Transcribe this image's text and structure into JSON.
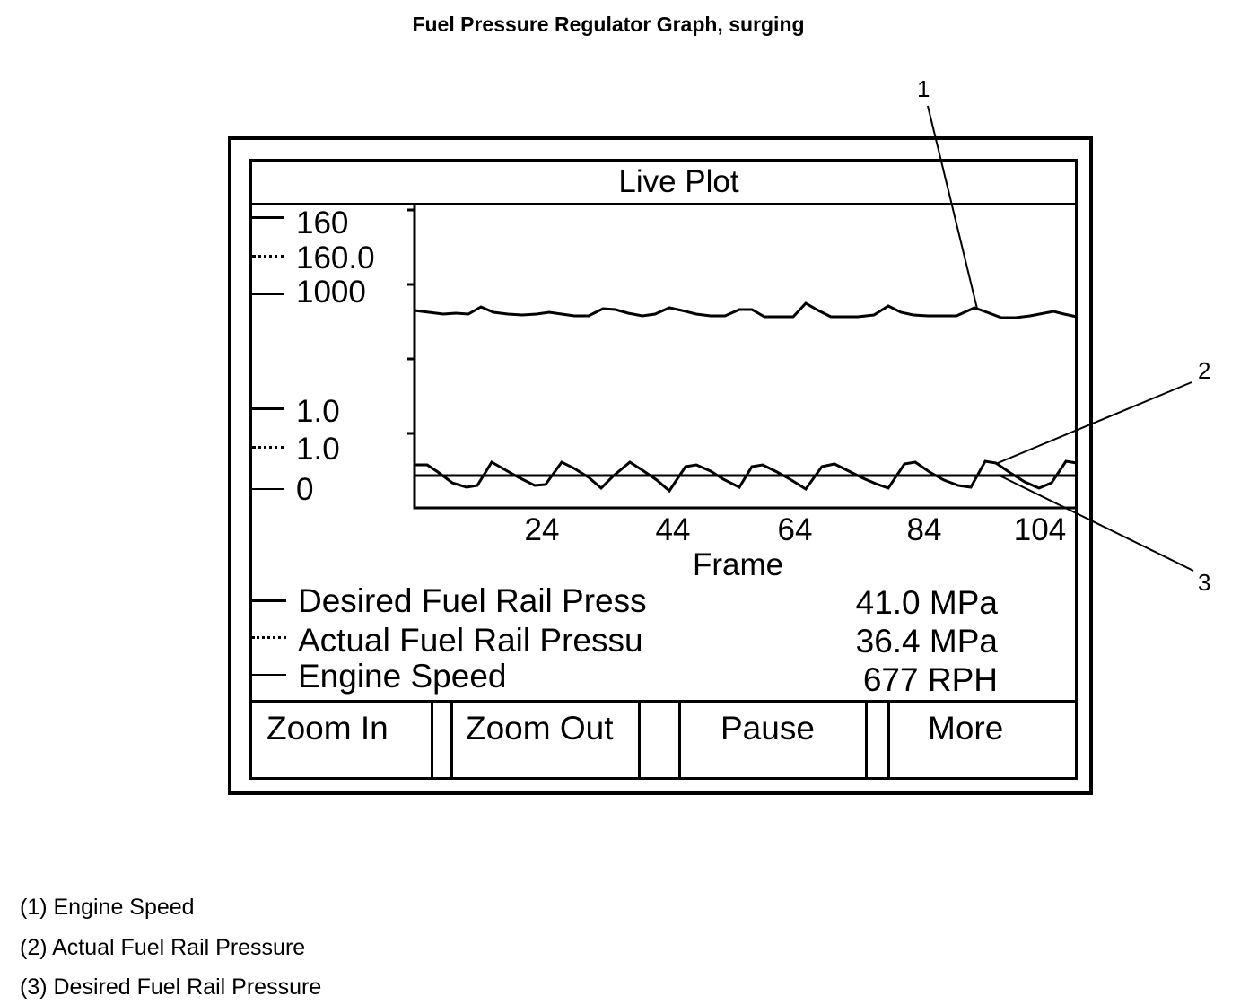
{
  "page": {
    "title": "Fuel Pressure Regulator Graph, surging"
  },
  "screen": {
    "title": "Live Plot",
    "y_axis_labels": [
      "160",
      "160.0",
      "1000",
      "1.0",
      "1.0",
      "0"
    ],
    "x_axis_label": "Frame",
    "x_ticks": [
      "24",
      "44",
      "64",
      "84",
      "104"
    ]
  },
  "legend": [
    {
      "name": "Desired Fuel Rail Press",
      "value": "41.0 MPa",
      "style": "solid"
    },
    {
      "name": "Actual Fuel Rail Pressu",
      "value": "36.4 MPa",
      "style": "dotted"
    },
    {
      "name": "Engine Speed",
      "value": "677 RPH",
      "style": "solid"
    }
  ],
  "buttons": {
    "zoom_in": "Zoom In",
    "zoom_out": "Zoom Out",
    "pause": "Pause",
    "more": "More"
  },
  "callouts": {
    "one": "1",
    "two": "2",
    "three": "3"
  },
  "captions": [
    "(1) Engine Speed",
    "(2) Actual Fuel Rail Pressure",
    "(3) Desired Fuel Rail Pressure"
  ]
}
